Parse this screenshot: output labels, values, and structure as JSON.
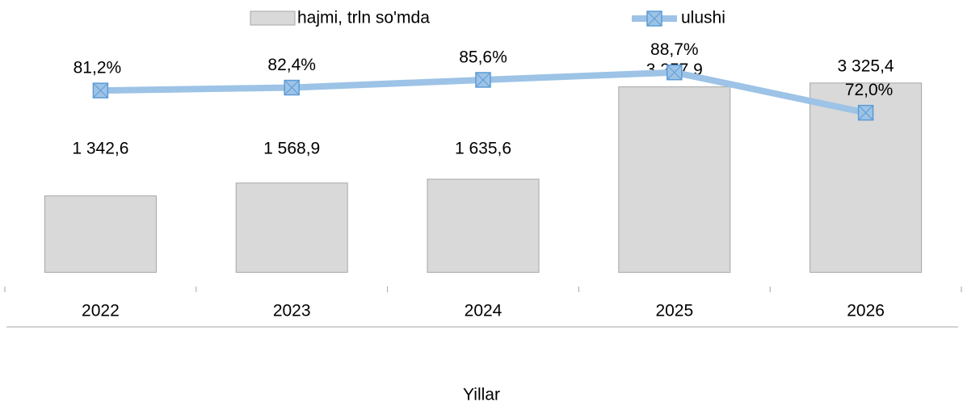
{
  "chart_data": {
    "type": "bar+line",
    "x_label": "Yillar",
    "categories": [
      "2022",
      "2023",
      "2024",
      "2025",
      "2026"
    ],
    "ylim": [
      -250,
      4500
    ],
    "y2lim": [
      0,
      112
    ],
    "series": [
      {
        "name": "hajmi, trln so'mda",
        "type": "bar",
        "color": "#d9d9d9",
        "edge_color": "#a6a6a6",
        "values": [
          1342.6,
          1568.9,
          1635.6,
          3257.9,
          3325.4
        ],
        "value_labels": [
          "1 342,6",
          "1 568,9",
          "1 635,6",
          "3 257,9",
          "3 325,4"
        ]
      },
      {
        "name": "ulushi",
        "type": "line",
        "axis": "y2",
        "color": "#9dc3e6",
        "marker_color": "#5b9bd5",
        "values": [
          81.2,
          82.4,
          85.6,
          88.7,
          72.0
        ],
        "value_labels": [
          "81,2%",
          "82,4%",
          "85,6%",
          "88,7%",
          "72,0%"
        ]
      }
    ],
    "legend": "top"
  }
}
